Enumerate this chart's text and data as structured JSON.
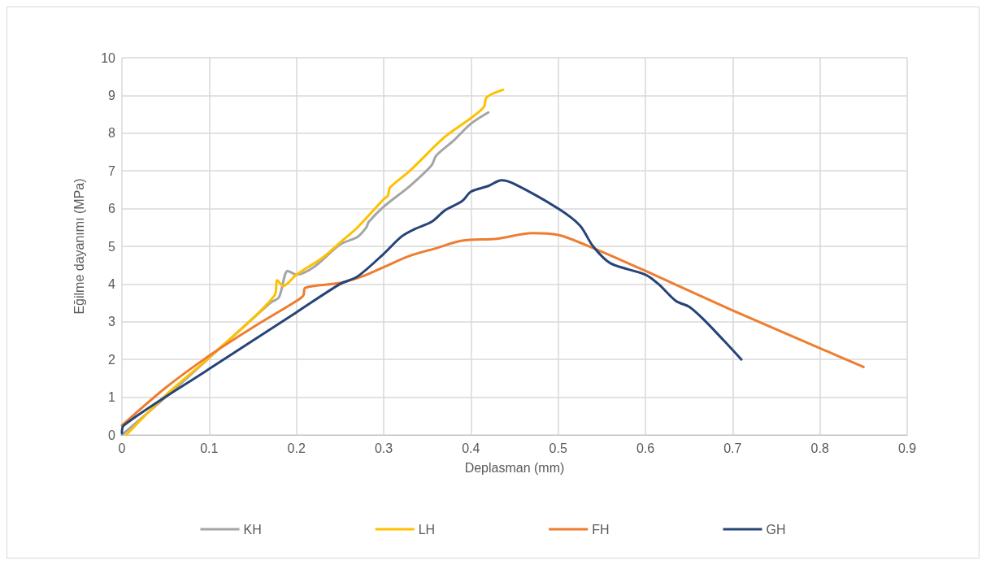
{
  "chart_data": {
    "type": "line",
    "xlabel": "Deplasman (mm)",
    "ylabel": "Eğilme dayanımı (MPa)",
    "xlim": [
      0,
      0.9
    ],
    "xticks": [
      0,
      0.1,
      0.2,
      0.3,
      0.4,
      0.5,
      0.6,
      0.7,
      0.8,
      0.9
    ],
    "ylim": [
      0,
      10
    ],
    "yticks": [
      0,
      1,
      2,
      3,
      4,
      5,
      6,
      7,
      8,
      9,
      10
    ],
    "grid": true,
    "legend": "bottom",
    "marker": "none",
    "line_style": "solid",
    "series": [
      {
        "name": "KH",
        "color": "#a5a5a5",
        "x": [
          0,
          0.05,
          0.17,
          0.18,
          0.19,
          0.2,
          0.22,
          0.25,
          0.27,
          0.28,
          0.283,
          0.3,
          0.33,
          0.355,
          0.36,
          0.38,
          0.4,
          0.42
        ],
        "values": [
          0,
          1,
          3.5,
          3.65,
          4.35,
          4.25,
          4.45,
          5.05,
          5.25,
          5.5,
          5.65,
          6.05,
          6.6,
          7.15,
          7.4,
          7.8,
          8.25,
          8.55
        ]
      },
      {
        "name": "LH",
        "color": "#ffc000",
        "x": [
          0.005,
          0.05,
          0.1,
          0.175,
          0.178,
          0.185,
          0.2,
          0.23,
          0.25,
          0.27,
          0.3,
          0.305,
          0.307,
          0.33,
          0.37,
          0.4,
          0.415,
          0.418,
          0.437
        ],
        "values": [
          0,
          1.05,
          2.05,
          3.7,
          4.1,
          3.95,
          4.25,
          4.7,
          5.1,
          5.5,
          6.25,
          6.35,
          6.55,
          7,
          7.9,
          8.4,
          8.7,
          8.95,
          9.15
        ]
      },
      {
        "name": "FH",
        "color": "#ed7d31",
        "x": [
          0,
          0.05,
          0.1,
          0.15,
          0.2,
          0.208,
          0.21,
          0.25,
          0.275,
          0.3,
          0.33,
          0.36,
          0.39,
          0.43,
          0.47,
          0.5,
          0.53,
          0.6,
          0.7,
          0.8,
          0.85
        ],
        "values": [
          0.25,
          1.25,
          2.1,
          2.85,
          3.55,
          3.7,
          3.9,
          4.03,
          4.2,
          4.45,
          4.75,
          4.95,
          5.15,
          5.2,
          5.35,
          5.3,
          5.05,
          4.35,
          3.3,
          2.3,
          1.8
        ]
      },
      {
        "name": "GH",
        "color": "#264478",
        "x": [
          0,
          0.002,
          0.1,
          0.2,
          0.25,
          0.27,
          0.3,
          0.32,
          0.335,
          0.355,
          0.37,
          0.39,
          0.4,
          0.42,
          0.435,
          0.45,
          0.5,
          0.525,
          0.54,
          0.56,
          0.6,
          0.615,
          0.635,
          0.65,
          0.665,
          0.69,
          0.71
        ],
        "values": [
          0.05,
          0.25,
          1.75,
          3.25,
          4,
          4.2,
          4.8,
          5.25,
          5.45,
          5.65,
          5.95,
          6.2,
          6.45,
          6.6,
          6.75,
          6.65,
          6,
          5.55,
          5,
          4.55,
          4.25,
          4,
          3.55,
          3.4,
          3.1,
          2.5,
          2
        ]
      }
    ]
  }
}
